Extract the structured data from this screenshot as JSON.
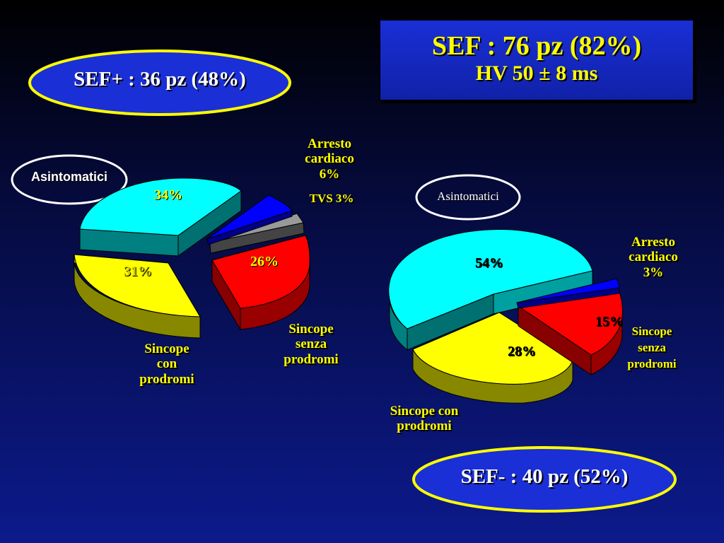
{
  "title": {
    "line1": "SEF : 76 pz (82%)",
    "line2": "HV 50 ± 8 ms"
  },
  "group_pos": {
    "label": "SEF+ : 36 pz (48%)"
  },
  "group_neg": {
    "label": "SEF- : 40 pz (52%)"
  },
  "colors": {
    "asintomatici": "#00ffff",
    "arresto": "#0000ff",
    "tvs": "#999999",
    "sincope_senza": "#ff0000",
    "sincope_con": "#ffff00",
    "text_yellow": "#ffff00",
    "ellipse_fill": "#1a2fd6"
  },
  "chart_data": [
    {
      "type": "pie",
      "title": "SEF+ : 36 pz (48%)",
      "categories": [
        "Asintomatici",
        "Arresto cardiaco",
        "TVS",
        "Sincope senza prodromi",
        "Sincope con prodromi"
      ],
      "values": [
        34,
        6,
        3,
        26,
        31
      ],
      "labels": [
        "34%",
        "6%",
        "3%",
        "26%",
        "31%"
      ],
      "callouts": {
        "asintomatici": "Asintomatici",
        "arresto_l1": "Arresto",
        "arresto_l2": "cardiaco",
        "arresto_l3": "6%",
        "tvs": "TVS 3%",
        "senza_l1": "Sincope",
        "senza_l2": "senza",
        "senza_l3": "prodromi",
        "con_l1": "Sincope",
        "con_l2": "con",
        "con_l3": "prodromi"
      }
    },
    {
      "type": "pie",
      "title": "SEF- : 40 pz (52%)",
      "categories": [
        "Asintomatici",
        "Arresto cardiaco",
        "Sincope senza prodromi",
        "Sincope con prodromi"
      ],
      "values": [
        54,
        3,
        15,
        28
      ],
      "labels": [
        "54%",
        "3%",
        "15%",
        "28%"
      ],
      "callouts": {
        "asintomatici": "Asintomatici",
        "arresto_l1": "Arresto",
        "arresto_l2": "cardiaco",
        "arresto_l3": "3%",
        "senza_l1": "Sincope",
        "senza_l2": "senza",
        "senza_l3": "prodromi",
        "con_l1": "Sincope con",
        "con_l2": "prodromi"
      }
    }
  ]
}
